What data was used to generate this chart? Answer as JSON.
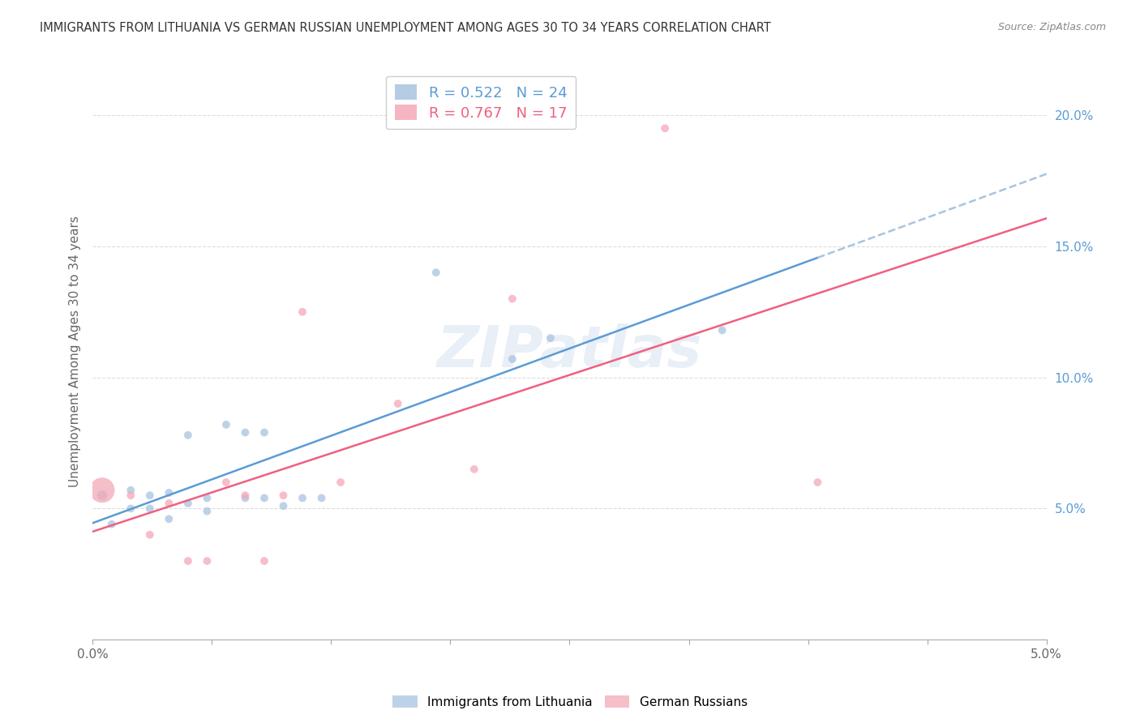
{
  "title": "IMMIGRANTS FROM LITHUANIA VS GERMAN RUSSIAN UNEMPLOYMENT AMONG AGES 30 TO 34 YEARS CORRELATION CHART",
  "source": "Source: ZipAtlas.com",
  "ylabel": "Unemployment Among Ages 30 to 34 years",
  "xlim": [
    0.0,
    0.05
  ],
  "ylim": [
    0.0,
    0.22
  ],
  "legend1_r": "0.522",
  "legend1_n": "24",
  "legend2_r": "0.767",
  "legend2_n": "17",
  "blue_color": "#A8C4E0",
  "pink_color": "#F4A8B8",
  "blue_line_color": "#5B9BD5",
  "pink_line_color": "#F06080",
  "dashed_line_color": "#A8C4E0",
  "tick_color": "#5B9BD5",
  "watermark": "ZIPatlas",
  "background_color": "#FFFFFF",
  "grid_color": "#DDDDDD",
  "lithuania_x": [
    0.0005,
    0.001,
    0.002,
    0.002,
    0.003,
    0.003,
    0.004,
    0.004,
    0.005,
    0.005,
    0.006,
    0.006,
    0.007,
    0.008,
    0.008,
    0.009,
    0.009,
    0.01,
    0.011,
    0.012,
    0.018,
    0.022,
    0.024,
    0.033
  ],
  "lithuania_y": [
    0.055,
    0.044,
    0.05,
    0.057,
    0.05,
    0.055,
    0.046,
    0.056,
    0.078,
    0.052,
    0.054,
    0.049,
    0.082,
    0.079,
    0.054,
    0.054,
    0.079,
    0.051,
    0.054,
    0.054,
    0.14,
    0.107,
    0.115,
    0.118
  ],
  "lithuania_sizes": [
    80,
    50,
    50,
    50,
    50,
    50,
    50,
    50,
    50,
    50,
    50,
    50,
    50,
    50,
    50,
    50,
    50,
    50,
    50,
    50,
    50,
    50,
    50,
    50
  ],
  "german_russian_x": [
    0.0005,
    0.002,
    0.003,
    0.004,
    0.005,
    0.006,
    0.007,
    0.008,
    0.009,
    0.01,
    0.011,
    0.013,
    0.016,
    0.02,
    0.022,
    0.03,
    0.038
  ],
  "german_russian_y": [
    0.057,
    0.055,
    0.04,
    0.052,
    0.03,
    0.03,
    0.06,
    0.055,
    0.03,
    0.055,
    0.125,
    0.06,
    0.09,
    0.065,
    0.13,
    0.195,
    0.06
  ],
  "german_russian_sizes": [
    500,
    50,
    50,
    50,
    50,
    50,
    50,
    50,
    50,
    50,
    50,
    50,
    50,
    50,
    50,
    50,
    50
  ],
  "blue_solid_xlim": [
    0.0,
    0.038
  ],
  "blue_dash_xlim": [
    0.038,
    0.05
  ],
  "pink_solid_xlim": [
    0.0,
    0.05
  ]
}
